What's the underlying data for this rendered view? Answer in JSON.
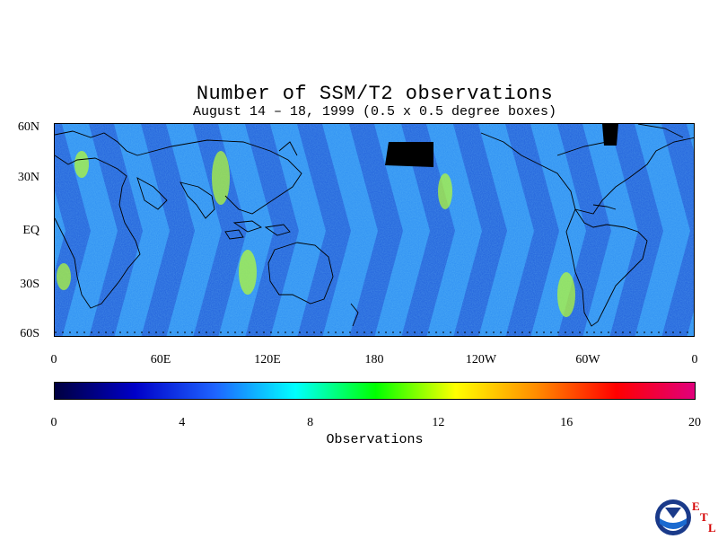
{
  "title": "Number of SSM/T2 observations",
  "subtitle": "August 14 – 18, 1999 (0.5 x 0.5 degree boxes)",
  "map": {
    "lat_ticks": [
      "60N",
      "30N",
      "EQ",
      "30S",
      "60S"
    ],
    "lat_values": [
      60,
      30,
      0,
      -30,
      -60
    ],
    "lon_ticks": [
      "0",
      "60E",
      "120E",
      "180",
      "120W",
      "60W",
      "0"
    ],
    "lon_values": [
      0,
      60,
      120,
      180,
      240,
      300,
      360
    ]
  },
  "colorbar": {
    "title": "Observations",
    "ticks": [
      "0",
      "4",
      "8",
      "12",
      "16",
      "20"
    ],
    "tick_values": [
      0,
      4,
      8,
      12,
      16,
      20
    ],
    "range": [
      0,
      20
    ],
    "colors": [
      "#000040",
      "#0000c8",
      "#1e64ff",
      "#00ffff",
      "#00ff00",
      "#ffff00",
      "#ff8c00",
      "#ff0000",
      "#e0007f"
    ]
  },
  "logo": {
    "icon": "noaa-logo",
    "letters": [
      "E",
      "T",
      "L"
    ]
  }
}
